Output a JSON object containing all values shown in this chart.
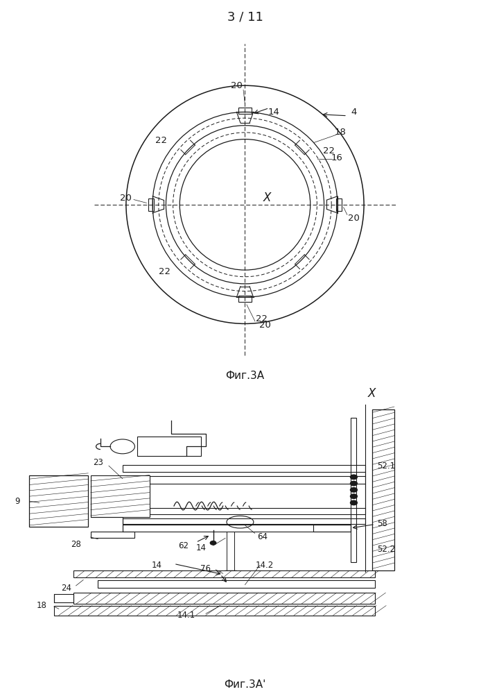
{
  "page_label": "3 / 11",
  "fig_label_top": "Фиг.3A",
  "fig_label_bottom": "Фиг.3A'",
  "bg_color": "#ffffff",
  "lc": "#1a1a1a"
}
